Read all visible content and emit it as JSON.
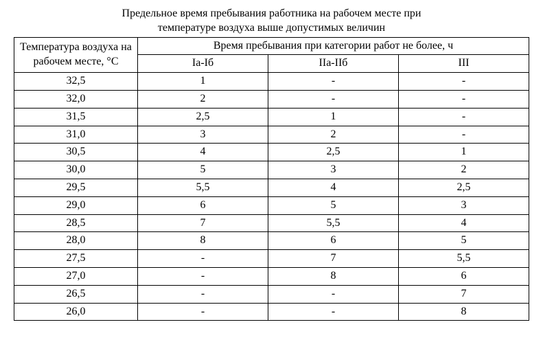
{
  "title_line1": "Предельное время пребывания работника на рабочем месте при",
  "title_line2": "температуре воздуха выше допустимых величин",
  "header": {
    "temp_label": "Температура воздуха на рабочем месте, °С",
    "group_label": "Время пребывания при категории работ не более, ч",
    "cat1": "Iа-Iб",
    "cat2": "IIа-IIб",
    "cat3": "III"
  },
  "rows": [
    {
      "temp": "32,5",
      "c1": "1",
      "c2": "-",
      "c3": "-"
    },
    {
      "temp": "32,0",
      "c1": "2",
      "c2": "-",
      "c3": "-"
    },
    {
      "temp": "31,5",
      "c1": "2,5",
      "c2": "1",
      "c3": "-"
    },
    {
      "temp": "31,0",
      "c1": "3",
      "c2": "2",
      "c3": "-"
    },
    {
      "temp": "30,5",
      "c1": "4",
      "c2": "2,5",
      "c3": "1"
    },
    {
      "temp": "30,0",
      "c1": "5",
      "c2": "3",
      "c3": "2"
    },
    {
      "temp": "29,5",
      "c1": "5,5",
      "c2": "4",
      "c3": "2,5"
    },
    {
      "temp": "29,0",
      "c1": "6",
      "c2": "5",
      "c3": "3"
    },
    {
      "temp": "28,5",
      "c1": "7",
      "c2": "5,5",
      "c3": "4"
    },
    {
      "temp": "28,0",
      "c1": "8",
      "c2": "6",
      "c3": "5"
    },
    {
      "temp": "27,5",
      "c1": "-",
      "c2": "7",
      "c3": "5,5"
    },
    {
      "temp": "27,0",
      "c1": "-",
      "c2": "8",
      "c3": "6"
    },
    {
      "temp": "26,5",
      "c1": "-",
      "c2": "-",
      "c3": "7"
    },
    {
      "temp": "26,0",
      "c1": "-",
      "c2": "-",
      "c3": "8"
    }
  ]
}
